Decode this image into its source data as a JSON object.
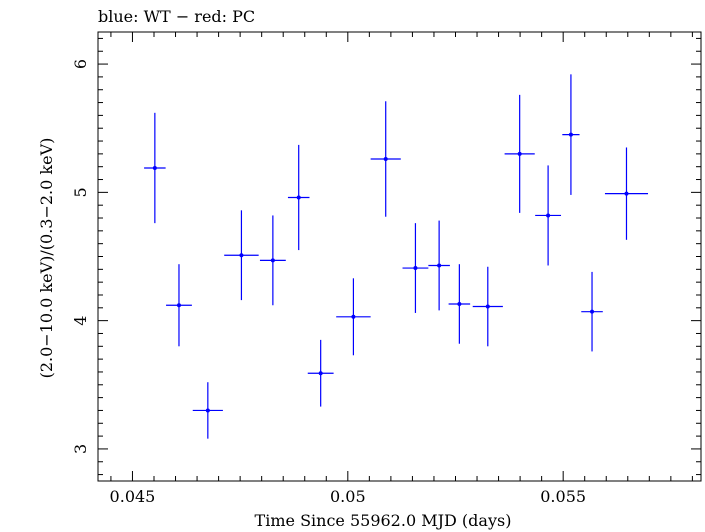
{
  "chart_data": {
    "type": "scatter",
    "title": "blue: WT − red: PC",
    "xlabel": "Time Since 55962.0 MJD (days)",
    "ylabel": "(2.0−10.0 keV)/(0.3−2.0 keV)",
    "xlim": [
      0.0442,
      0.0582
    ],
    "ylim": [
      2.75,
      6.25
    ],
    "x_ticks": [
      0.045,
      0.05,
      0.055
    ],
    "x_tick_labels": [
      "0.045",
      "0.05",
      "0.055"
    ],
    "y_ticks": [
      3,
      4,
      5,
      6
    ],
    "y_tick_labels": [
      "3",
      "4",
      "5",
      "6"
    ],
    "grid": false,
    "series": [
      {
        "color": "#0000ff",
        "points": [
          {
            "x": 0.04552,
            "xerr": 0.00025,
            "y": 5.19,
            "yerr": 0.43
          },
          {
            "x": 0.04608,
            "xerr": 0.0003,
            "y": 4.12,
            "yerr": 0.32
          },
          {
            "x": 0.04675,
            "xerr": 0.00035,
            "y": 3.3,
            "yerr": 0.22
          },
          {
            "x": 0.04753,
            "xerr": 0.0004,
            "y": 4.51,
            "yerr": 0.35
          },
          {
            "x": 0.04826,
            "xerr": 0.0003,
            "y": 4.47,
            "yerr": 0.35
          },
          {
            "x": 0.04886,
            "xerr": 0.00025,
            "y": 4.96,
            "yerr": 0.41
          },
          {
            "x": 0.04937,
            "xerr": 0.0003,
            "y": 3.59,
            "yerr": 0.26
          },
          {
            "x": 0.05013,
            "xerr": 0.0004,
            "y": 4.03,
            "yerr": 0.3
          },
          {
            "x": 0.05088,
            "xerr": 0.00035,
            "y": 5.26,
            "yerr": 0.45
          },
          {
            "x": 0.05157,
            "xerr": 0.0003,
            "y": 4.41,
            "yerr": 0.35
          },
          {
            "x": 0.05212,
            "xerr": 0.00025,
            "y": 4.43,
            "yerr": 0.35
          },
          {
            "x": 0.05259,
            "xerr": 0.00025,
            "y": 4.13,
            "yerr": 0.31
          },
          {
            "x": 0.05325,
            "xerr": 0.00035,
            "y": 4.11,
            "yerr": 0.31
          },
          {
            "x": 0.05399,
            "xerr": 0.00035,
            "y": 5.3,
            "yerr": 0.46
          },
          {
            "x": 0.05465,
            "xerr": 0.0003,
            "y": 4.82,
            "yerr": 0.39
          },
          {
            "x": 0.05518,
            "xerr": 0.0002,
            "y": 5.45,
            "yerr": 0.47
          },
          {
            "x": 0.05567,
            "xerr": 0.00025,
            "y": 4.07,
            "yerr": 0.31
          },
          {
            "x": 0.05647,
            "xerr": 0.0005,
            "y": 4.99,
            "yerr": 0.36
          }
        ]
      }
    ]
  }
}
